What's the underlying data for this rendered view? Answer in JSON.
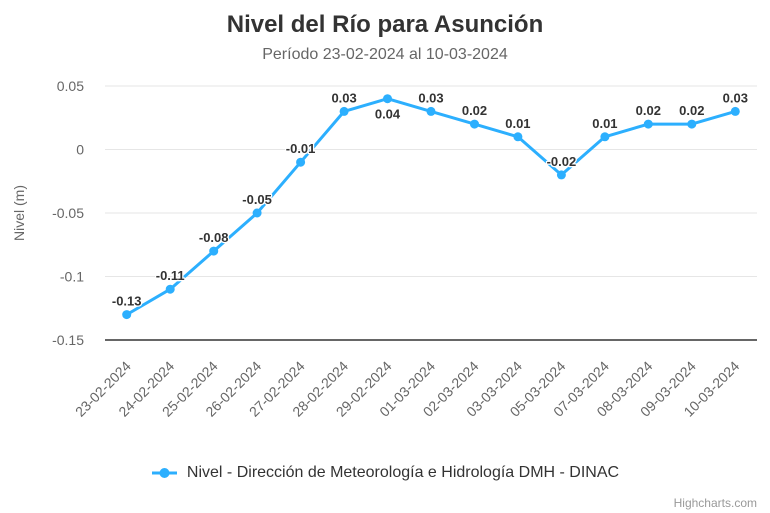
{
  "chart_data": {
    "type": "line",
    "title": "Nivel del Río para Asunción",
    "subtitle": "Período 23-02-2024 al 10-03-2024",
    "ylabel": "Nivel (m)",
    "xlabel": "",
    "ylim": [
      -0.15,
      0.05
    ],
    "ytick_values": [
      0.05,
      0,
      -0.05,
      -0.1,
      -0.15
    ],
    "ytick_labels": [
      "0.05",
      "0",
      "-0.05",
      "-0.1",
      "-0.15"
    ],
    "grid": true,
    "legend_position": "bottom-center",
    "categories": [
      "23-02-2024",
      "24-02-2024",
      "25-02-2024",
      "26-02-2024",
      "27-02-2024",
      "28-02-2024",
      "29-02-2024",
      "01-03-2024",
      "02-03-2024",
      "03-03-2024",
      "05-03-2024",
      "07-03-2024",
      "08-03-2024",
      "09-03-2024",
      "10-03-2024"
    ],
    "series": [
      {
        "name": "Nivel - Dirección de Meteorología e Hidrología DMH - DINAC",
        "color": "#2caffe",
        "values": [
          -0.13,
          -0.11,
          -0.08,
          -0.05,
          -0.01,
          0.03,
          0.04,
          0.03,
          0.02,
          0.01,
          -0.02,
          0.01,
          0.02,
          0.02,
          0.03
        ],
        "data_labels": [
          "-0.13",
          "-0.11",
          "-0.08",
          "-0.05",
          "-0.01",
          "0.03",
          "0.04",
          "0.03",
          "0.02",
          "0.01",
          "-0.02",
          "0.01",
          "0.02",
          "0.02",
          "0.03"
        ],
        "label_placement": [
          "above",
          "above",
          "above",
          "above",
          "above",
          "above",
          "below",
          "above",
          "above",
          "above",
          "above",
          "above",
          "above",
          "above",
          "above"
        ]
      }
    ],
    "credits": "Highcharts.com"
  },
  "colors": {
    "series_blue": "#2caffe",
    "title_text": "#333333",
    "subtitle_text": "#666666",
    "axis_text": "#666666",
    "grid_line": "#e6e6e6",
    "axis_line": "#666666",
    "data_label_text": "#333333",
    "data_label_outline": "#ffffff",
    "legend_text": "#333333",
    "credits_text": "#999999",
    "background": "#ffffff"
  }
}
